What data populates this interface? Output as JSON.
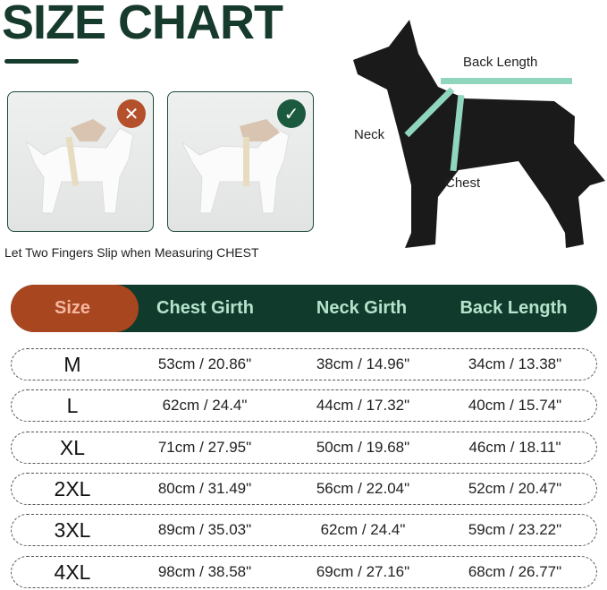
{
  "title": "SIZE CHART",
  "photos": [
    {
      "status": "incorrect",
      "icon": "x-icon",
      "color": "#b4502c"
    },
    {
      "status": "correct",
      "icon": "check-icon",
      "color": "#1c5a40"
    }
  ],
  "caption": "Let Two Fingers Slip when Measuring CHEST",
  "diagram": {
    "back": "Back Length",
    "neck": "Neck",
    "chest": "Chest",
    "tape_color": "#8fd6bd"
  },
  "colors": {
    "dark_green": "#0f3a2c",
    "orange": "#a8461f",
    "header_text": "#b6e3cc",
    "size_text": "#f5b7a0"
  },
  "table": {
    "headers": [
      "Size",
      "Chest Girth",
      "Neck Girth",
      "Back Length"
    ],
    "rows": [
      [
        "M",
        "53cm / 20.86\"",
        "38cm / 14.96\"",
        "34cm / 13.38\""
      ],
      [
        "L",
        "62cm / 24.4\"",
        "44cm / 17.32\"",
        "40cm / 15.74\""
      ],
      [
        "XL",
        "71cm / 27.95\"",
        "50cm / 19.68\"",
        "46cm / 18.11\""
      ],
      [
        "2XL",
        "80cm / 31.49\"",
        "56cm / 22.04\"",
        "52cm / 20.47\""
      ],
      [
        "3XL",
        "89cm / 35.03\"",
        "62cm / 24.4\"",
        "59cm / 23.22\""
      ],
      [
        "4XL",
        "98cm / 38.58\"",
        "69cm / 27.16\"",
        "68cm / 26.77\""
      ]
    ]
  }
}
